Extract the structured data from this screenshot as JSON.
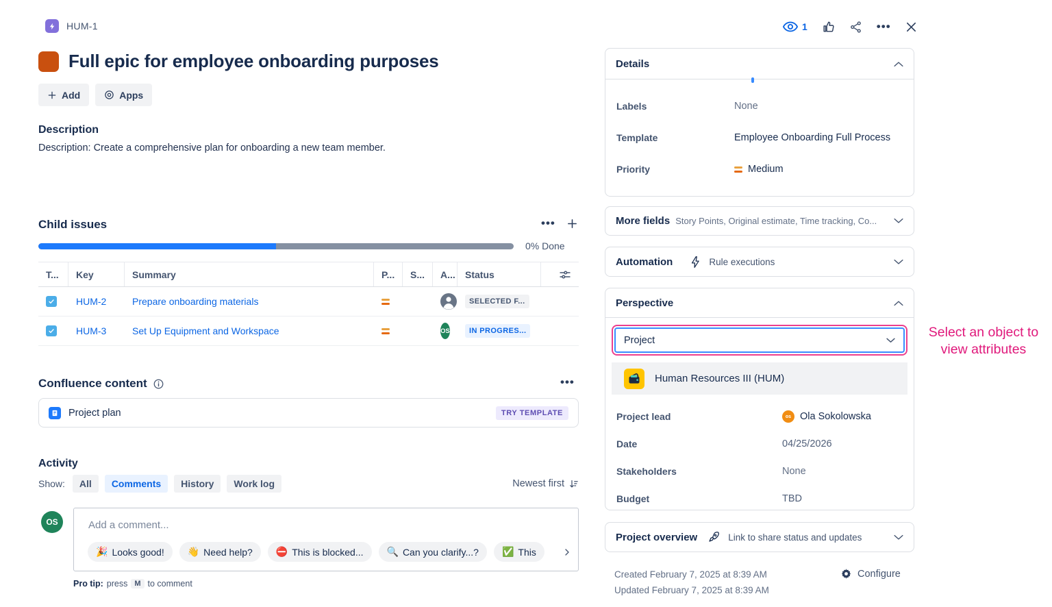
{
  "header": {
    "issue_key": "HUM-1",
    "title": "Full epic for employee onboarding purposes",
    "watcher_count": "1",
    "more_dots": "•••"
  },
  "toolbar": {
    "add_label": "Add",
    "apps_label": "Apps"
  },
  "description": {
    "heading": "Description",
    "body": "Description: Create a comprehensive plan for onboarding a new team member."
  },
  "child_issues": {
    "heading": "Child issues",
    "dots": "•••",
    "progress_pct": 50,
    "done_label": "0% Done",
    "columns": {
      "type": "T...",
      "key": "Key",
      "summary": "Summary",
      "priority": "P...",
      "s": "S...",
      "assignee": "A...",
      "status": "Status"
    },
    "rows": [
      {
        "key": "HUM-2",
        "summary": "Prepare onboarding materials",
        "status": "SELECTED F...",
        "assignee_initials": ""
      },
      {
        "key": "HUM-3",
        "summary": "Set Up Equipment and Workspace",
        "status": "IN PROGRES...",
        "assignee_initials": "OS"
      }
    ]
  },
  "confluence": {
    "heading": "Confluence content",
    "dots": "•••",
    "item_label": "Project plan",
    "badge": "TRY TEMPLATE"
  },
  "activity": {
    "heading": "Activity",
    "show_label": "Show:",
    "filters": [
      {
        "label": "All"
      },
      {
        "label": "Comments"
      },
      {
        "label": "History"
      },
      {
        "label": "Work log"
      }
    ],
    "sort_label": "Newest first",
    "avatar_initials": "OS",
    "comment_placeholder": "Add a comment...",
    "quick_replies": [
      {
        "icon": "🎉",
        "label": "Looks good!"
      },
      {
        "icon": "👋",
        "label": "Need help?"
      },
      {
        "icon": "⛔",
        "label": "This is blocked..."
      },
      {
        "icon": "🔍",
        "label": "Can you clarify...?"
      },
      {
        "icon": "✅",
        "label": "This"
      }
    ],
    "pro_tip_bold": "Pro tip:",
    "pro_tip_press": "press",
    "pro_tip_key": "M",
    "pro_tip_suffix": "to comment"
  },
  "details": {
    "heading": "Details",
    "labels_label": "Labels",
    "labels_value": "None",
    "template_label": "Template",
    "template_value": "Employee Onboarding Full Process",
    "priority_label": "Priority",
    "priority_value": "Medium"
  },
  "more_fields": {
    "heading": "More fields",
    "summary": "Story Points, Original estimate, Time tracking, Co..."
  },
  "automation": {
    "heading": "Automation",
    "summary": "Rule executions"
  },
  "perspective": {
    "heading": "Perspective",
    "dropdown_value": "Project",
    "object_name": "Human Resources III (HUM)",
    "lead_label": "Project lead",
    "lead_value": "Ola Sokolowska",
    "lead_initials": "os",
    "date_label": "Date",
    "date_value": "04/25/2026",
    "stakeholders_label": "Stakeholders",
    "stakeholders_value": "None",
    "budget_label": "Budget",
    "budget_value": "TBD"
  },
  "project_overview": {
    "heading": "Project overview",
    "summary": "Link to share status and updates"
  },
  "footer": {
    "created": "Created February 7, 2025 at 8:39 AM",
    "updated": "Updated February 7, 2025 at 8:39 AM",
    "configure_label": "Configure"
  },
  "annotation": {
    "text": "Select an object to view attributes",
    "color": "#E0187B"
  }
}
